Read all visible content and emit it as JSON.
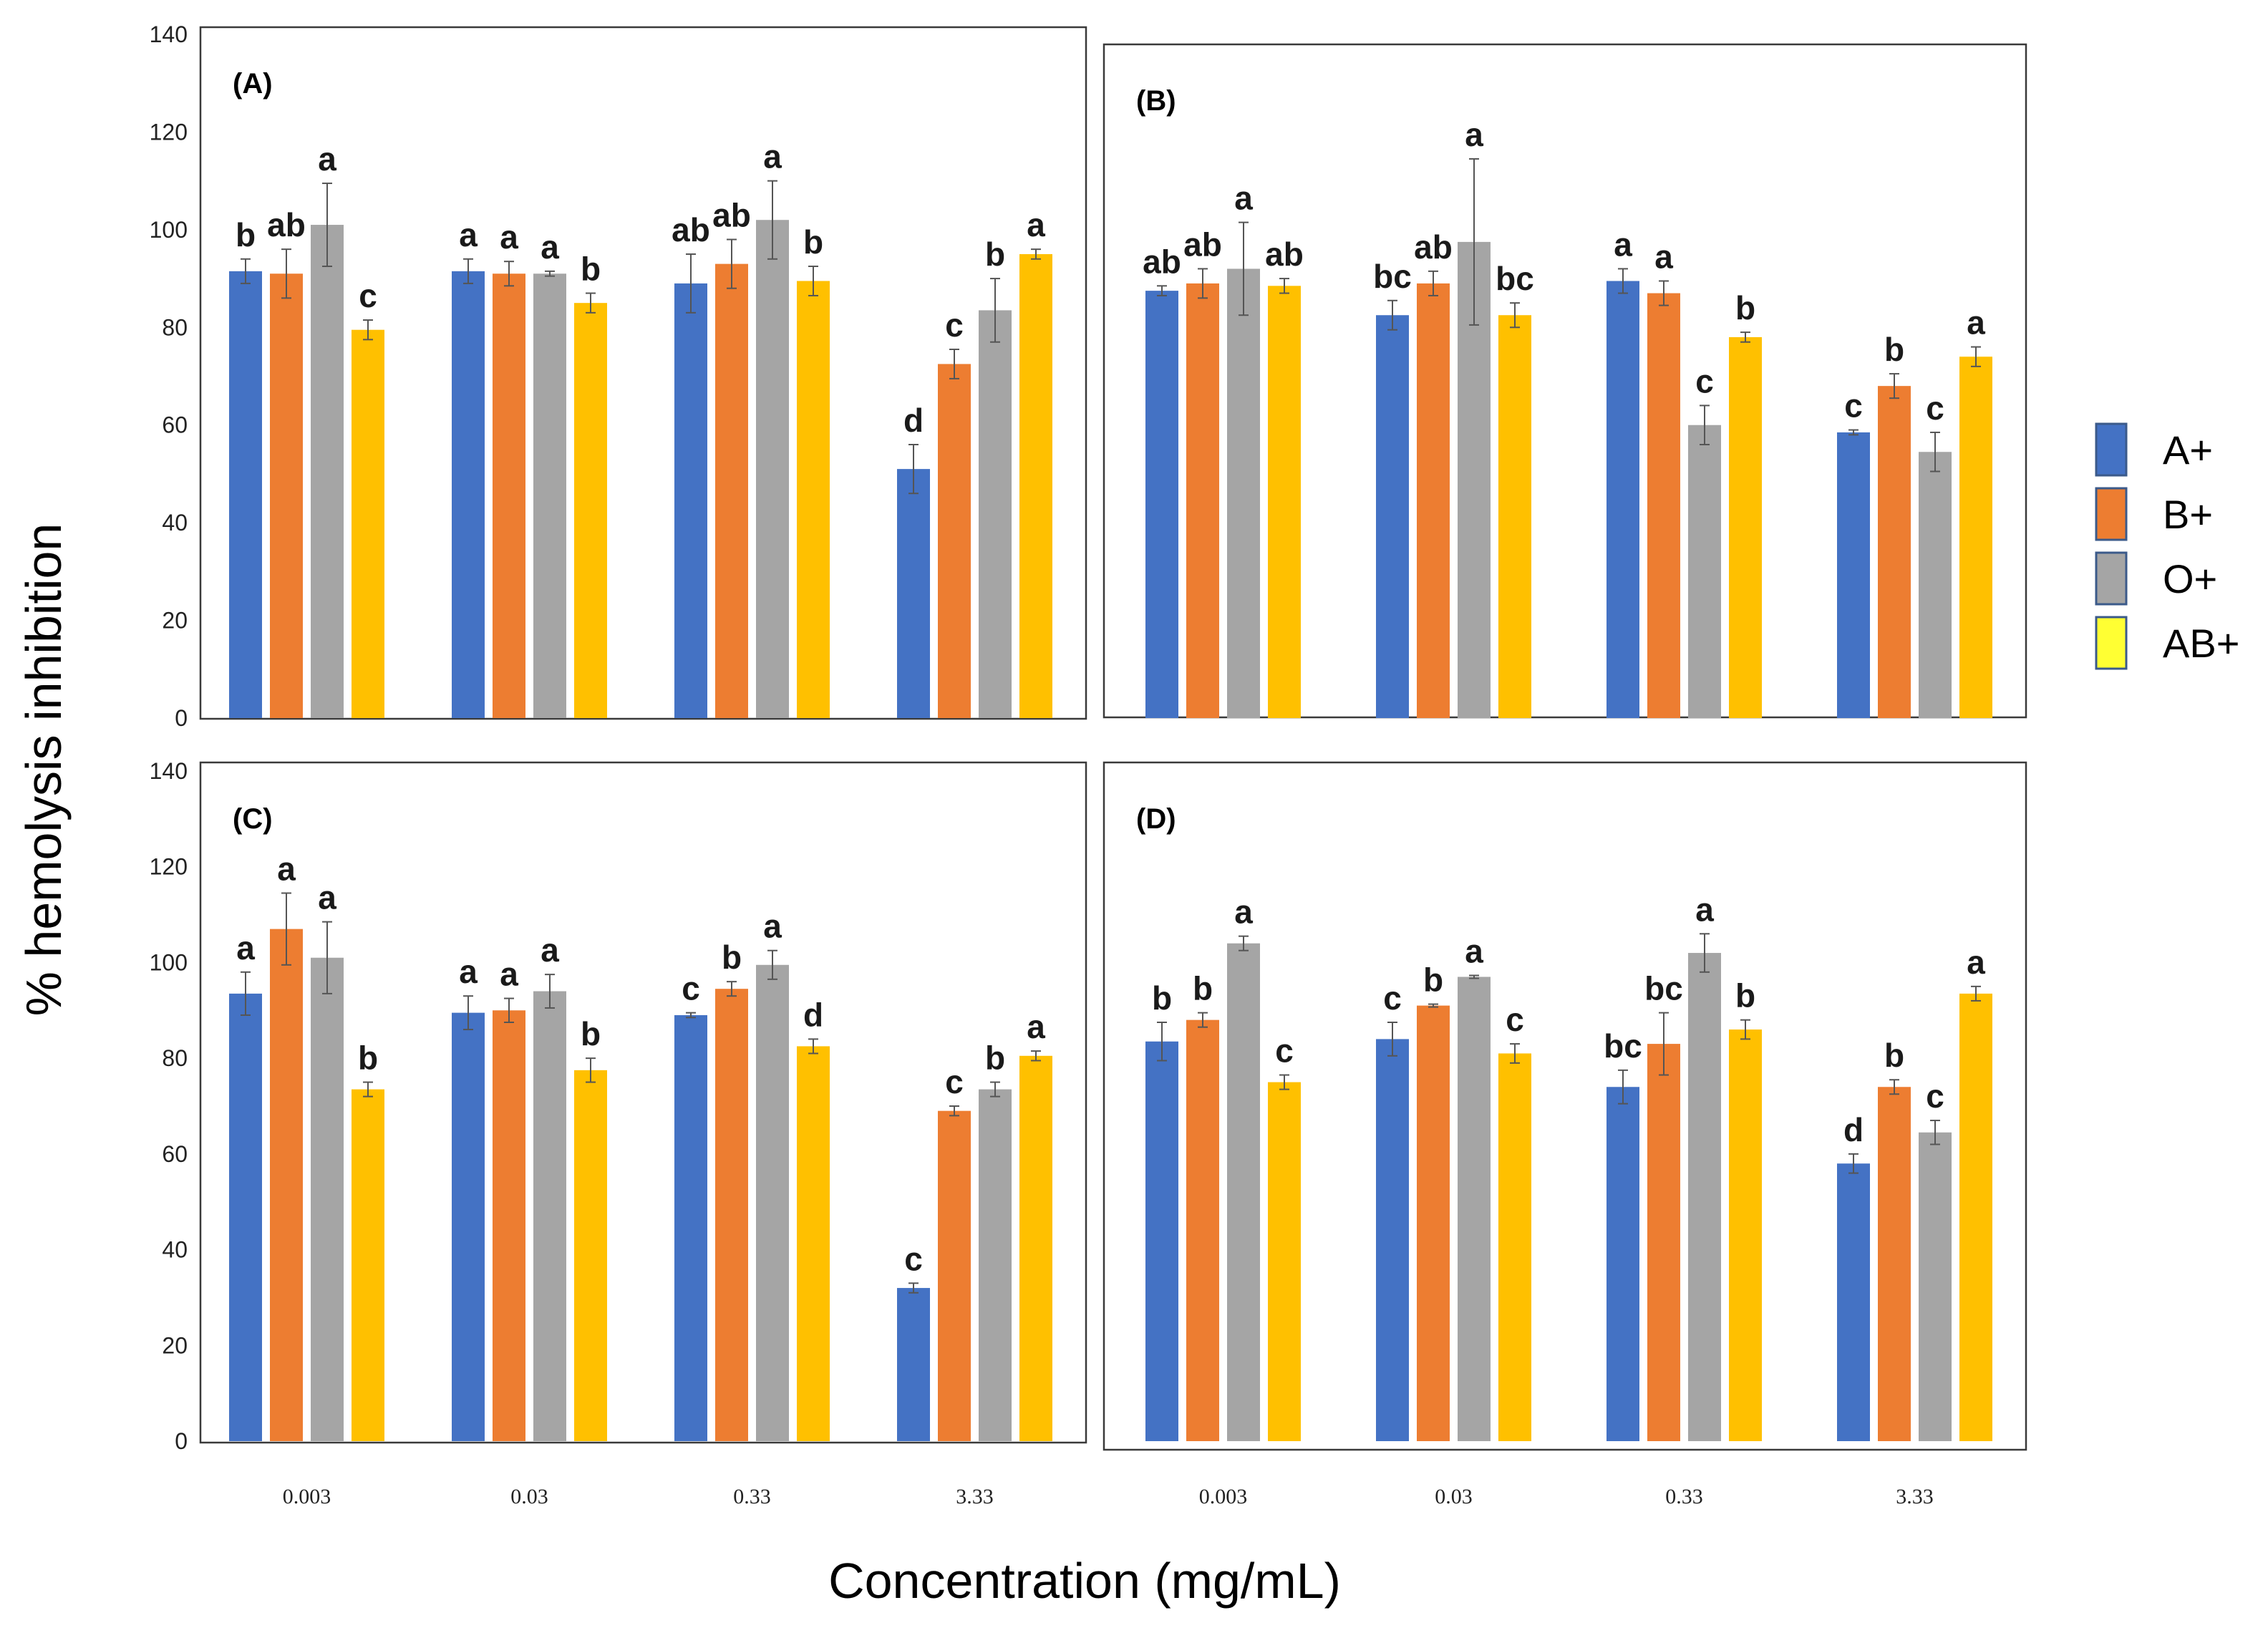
{
  "chart_data": {
    "type": "bar",
    "ylabel": "% hemolysis inhibition",
    "xlabel": "Concentration (mg/mL)",
    "ylim": [
      0,
      140
    ],
    "yticks": [
      "0",
      "20",
      "40",
      "60",
      "80",
      "100",
      "120",
      "140"
    ],
    "categories": [
      "0.003",
      "0.03",
      "0.33",
      "3.33"
    ],
    "legend": [
      {
        "name": "A+",
        "color": "#4472C4"
      },
      {
        "name": "B+",
        "color": "#ED7D31"
      },
      {
        "name": "O+",
        "color": "#A5A5A5"
      },
      {
        "name": "AB+",
        "color": "#FFC000",
        "swatch": "#FFFF33"
      }
    ],
    "panels": [
      {
        "title": "(A)",
        "series": [
          {
            "name": "A+",
            "values": [
              91.5,
              91.5,
              89,
              51
            ],
            "errors": [
              2.5,
              2.5,
              6,
              5
            ],
            "labels": [
              "b",
              "a",
              "ab",
              "d"
            ]
          },
          {
            "name": "B+",
            "values": [
              91,
              91,
              93,
              72.5
            ],
            "errors": [
              5,
              2.5,
              5,
              3
            ],
            "labels": [
              "ab",
              "a",
              "ab",
              "c"
            ]
          },
          {
            "name": "O+",
            "values": [
              101,
              91,
              102,
              83.5
            ],
            "errors": [
              8.5,
              0.5,
              8,
              6.5
            ],
            "labels": [
              "a",
              "a",
              "a",
              "b"
            ]
          },
          {
            "name": "AB+",
            "values": [
              79.5,
              85,
              89.5,
              95
            ],
            "errors": [
              2,
              2,
              3,
              1
            ],
            "labels": [
              "c",
              "b",
              "b",
              "a"
            ]
          }
        ]
      },
      {
        "title": "(B)",
        "series": [
          {
            "name": "A+",
            "values": [
              87.5,
              82.5,
              89.5,
              58.5
            ],
            "errors": [
              1,
              3,
              2.5,
              0.5
            ],
            "labels": [
              "ab",
              "bc",
              "a",
              "c"
            ]
          },
          {
            "name": "B+",
            "values": [
              89,
              89,
              87,
              68
            ],
            "errors": [
              3,
              2.5,
              2.5,
              2.5
            ],
            "labels": [
              "ab",
              "ab",
              "a",
              "b"
            ]
          },
          {
            "name": "O+",
            "values": [
              92,
              97.5,
              60,
              54.5
            ],
            "errors": [
              9.5,
              17,
              4,
              4
            ],
            "labels": [
              "a",
              "a",
              "c",
              "c"
            ]
          },
          {
            "name": "AB+",
            "values": [
              88.5,
              82.5,
              78,
              74
            ],
            "errors": [
              1.5,
              2.5,
              1,
              2
            ],
            "labels": [
              "ab",
              "bc",
              "b",
              "a"
            ]
          }
        ]
      },
      {
        "title": "(C)",
        "series": [
          {
            "name": "A+",
            "values": [
              93.5,
              89.5,
              89,
              32
            ],
            "errors": [
              4.5,
              3.5,
              0.5,
              1
            ],
            "labels": [
              "a",
              "a",
              "c",
              "c"
            ]
          },
          {
            "name": "B+",
            "values": [
              107,
              90,
              94.5,
              69
            ],
            "errors": [
              7.5,
              2.5,
              1.5,
              1
            ],
            "labels": [
              "a",
              "a",
              "b",
              "c"
            ]
          },
          {
            "name": "O+",
            "values": [
              101,
              94,
              99.5,
              73.5
            ],
            "errors": [
              7.5,
              3.5,
              3,
              1.5
            ],
            "labels": [
              "a",
              "a",
              "a",
              "b"
            ]
          },
          {
            "name": "AB+",
            "values": [
              73.5,
              77.5,
              82.5,
              80.5
            ],
            "errors": [
              1.5,
              2.5,
              1.5,
              1
            ],
            "labels": [
              "b",
              "b",
              "d",
              "a"
            ]
          }
        ]
      },
      {
        "title": "(D)",
        "series": [
          {
            "name": "A+",
            "values": [
              83.5,
              84,
              74,
              58
            ],
            "errors": [
              4,
              3.5,
              3.5,
              2
            ],
            "labels": [
              "b",
              "c",
              "bc",
              "d"
            ]
          },
          {
            "name": "B+",
            "values": [
              88,
              91,
              83,
              74
            ],
            "errors": [
              1.5,
              0.3,
              6.5,
              1.5
            ],
            "labels": [
              "b",
              "b",
              "bc",
              "b"
            ]
          },
          {
            "name": "O+",
            "values": [
              104,
              97,
              102,
              64.5
            ],
            "errors": [
              1.5,
              0.3,
              4,
              2.5
            ],
            "labels": [
              "a",
              "a",
              "a",
              "c"
            ]
          },
          {
            "name": "AB+",
            "values": [
              75,
              81,
              86,
              93.5
            ],
            "errors": [
              1.5,
              2,
              2,
              1.5
            ],
            "labels": [
              "c",
              "c",
              "b",
              "a"
            ]
          }
        ]
      }
    ]
  }
}
